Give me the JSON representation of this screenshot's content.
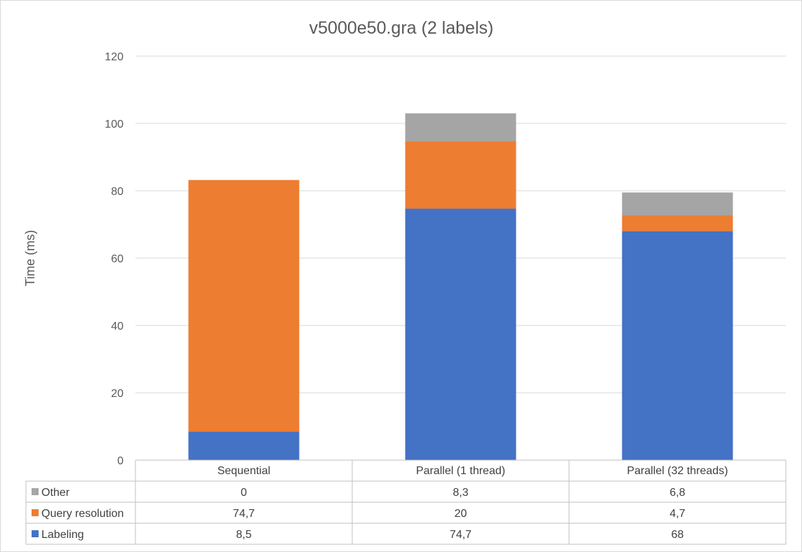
{
  "chart_data": {
    "type": "bar",
    "stacked": true,
    "title": "v5000e50.gra (2 labels)",
    "xlabel": "",
    "ylabel": "Time (ms)",
    "ylim": [
      0,
      120
    ],
    "yticks": [
      0,
      20,
      40,
      60,
      80,
      100,
      120
    ],
    "grid": true,
    "legend": "data-table",
    "categories": [
      "Sequential",
      "Parallel (1 thread)",
      "Parallel (32 threads)"
    ],
    "series": [
      {
        "name": "Labeling",
        "color": "#4472c4",
        "values": [
          8.5,
          74.7,
          68
        ],
        "labels": [
          "8,5",
          "74,7",
          "68"
        ]
      },
      {
        "name": "Query resolution",
        "color": "#ed7d31",
        "values": [
          74.7,
          20,
          4.7
        ],
        "labels": [
          "74,7",
          "20",
          "4,7"
        ]
      },
      {
        "name": "Other",
        "color": "#a5a5a5",
        "values": [
          0,
          8.3,
          6.8
        ],
        "labels": [
          "0",
          "8,3",
          "6,8"
        ]
      }
    ],
    "table_row_order": [
      "Other",
      "Query resolution",
      "Labeling"
    ]
  }
}
